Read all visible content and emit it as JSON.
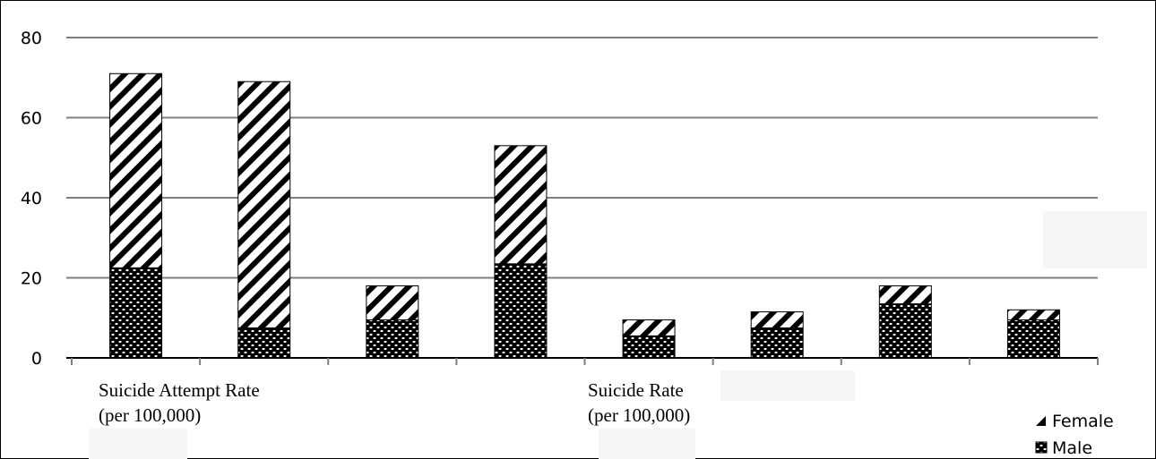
{
  "chart_data": {
    "type": "bar",
    "stacked": true,
    "y_ticks": [
      "0",
      "20",
      "40",
      "60",
      "80"
    ],
    "ylim": [
      0,
      80
    ],
    "category_labels": [
      {
        "line1": "Suicide Attempt Rate",
        "line2": "(per 100,000)"
      },
      {
        "line1": "Suicide Rate",
        "line2": "(per 100,000)"
      }
    ],
    "series": [
      {
        "name": "Male",
        "values": [
          22.5,
          7.5,
          9.5,
          23.5,
          5.5,
          7.5,
          13.5,
          9.5
        ],
        "pattern": "dots"
      },
      {
        "name": "Female",
        "values": [
          48.5,
          61.5,
          8.5,
          29.5,
          4.0,
          4.0,
          4.5,
          2.5
        ],
        "pattern": "stripes"
      }
    ],
    "legend": {
      "position": "bottom-right",
      "entries": [
        "Female",
        "Male"
      ]
    },
    "grid": true,
    "colors": {
      "ink": "#000000",
      "grid": "#7f7f7f",
      "paper": "#ffffff"
    }
  }
}
